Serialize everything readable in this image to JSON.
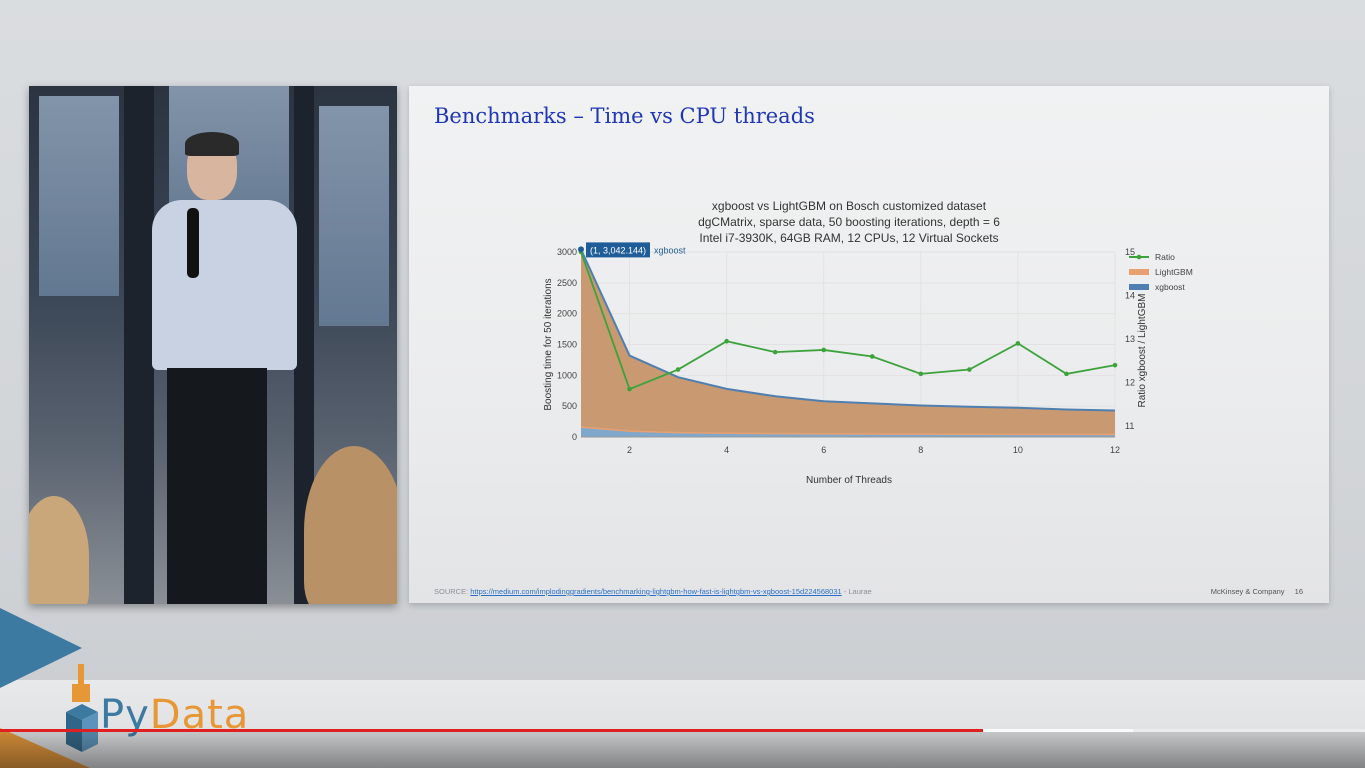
{
  "slide": {
    "title": "Benchmarks – Time vs CPU threads",
    "source_label": "SOURCE:",
    "source_url": "https://medium.com/implodinggradients/benchmarking-lightgbm-how-fast-is-lightgbm-vs-xgboost-15d224568031",
    "source_author": " - Laurae",
    "company": "McKinsey & Company",
    "page_number": "16"
  },
  "chart_data": {
    "type": "area",
    "title_lines": [
      "xgboost vs LightGBM on Bosch customized dataset",
      "dgCMatrix, sparse data, 50 boosting iterations, depth = 6",
      "Intel i7-3930K, 64GB RAM, 12 CPUs, 12 Virtual Sockets"
    ],
    "xlabel": "Number of Threads",
    "ylabel": "Boosting time for 50 iterations",
    "y2label": "Ratio xgboost / LightGBM",
    "x": [
      1,
      2,
      3,
      4,
      5,
      6,
      7,
      8,
      9,
      10,
      11,
      12
    ],
    "xticks": [
      2,
      4,
      6,
      8,
      10,
      12
    ],
    "xlim": [
      1,
      12
    ],
    "ylim": [
      0,
      3000
    ],
    "yticks": [
      0,
      500,
      1000,
      1500,
      2000,
      2500,
      3000
    ],
    "y2lim": [
      10.75,
      15
    ],
    "y2ticks": [
      11,
      12,
      13,
      14,
      15
    ],
    "grid": true,
    "legend_position": "top-right",
    "series": [
      {
        "name": "xgboost",
        "axis": "y",
        "kind": "area",
        "color": "#4f7fb0",
        "values": [
          3042.144,
          1320,
          970,
          780,
          660,
          580,
          545,
          510,
          490,
          475,
          445,
          430
        ]
      },
      {
        "name": "LightGBM",
        "axis": "y",
        "kind": "area",
        "color": "#e8a070",
        "values": [
          160,
          95,
          70,
          60,
          55,
          50,
          48,
          46,
          44,
          43,
          42,
          41
        ]
      },
      {
        "name": "Ratio",
        "axis": "y2",
        "kind": "line",
        "color": "#3ca23c",
        "values": [
          15,
          11.85,
          12.3,
          12.95,
          12.7,
          12.75,
          12.6,
          12.2,
          12.3,
          12.9,
          12.2,
          12.4
        ]
      }
    ],
    "hover_label": {
      "text": "(1, 3,042.144)",
      "series": "xgboost"
    }
  },
  "branding": {
    "logo_py": "Py",
    "logo_data": "Data"
  },
  "player": {
    "played_fraction": 0.72,
    "buffered_fraction": 0.83
  }
}
